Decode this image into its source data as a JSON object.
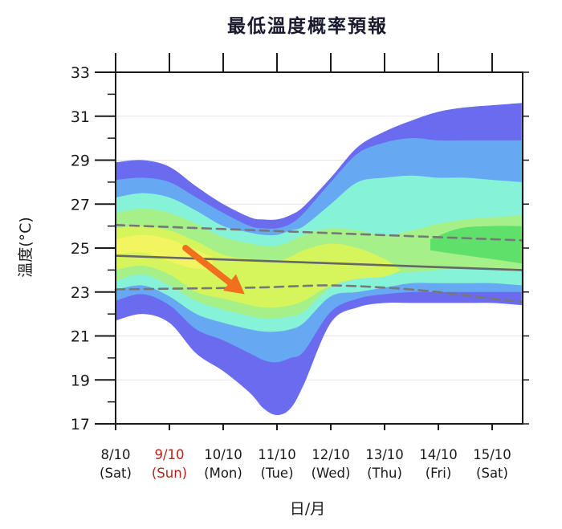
{
  "chart_data": {
    "type": "area",
    "title": "最低溫度概率預報",
    "xlabel": "日/月",
    "ylabel": "溫度(°C)",
    "ylim": [
      17,
      33
    ],
    "yticks": [
      17,
      19,
      21,
      23,
      25,
      27,
      29,
      31,
      33
    ],
    "grid": true,
    "categories": [
      {
        "date": "8/10",
        "day": "(Sat)",
        "highlight": false
      },
      {
        "date": "9/10",
        "day": "(Sun)",
        "highlight": true
      },
      {
        "date": "10/10",
        "day": "(Mon)",
        "highlight": false
      },
      {
        "date": "11/10",
        "day": "(Tue)",
        "highlight": false
      },
      {
        "date": "12/10",
        "day": "(Wed)",
        "highlight": false
      },
      {
        "date": "13/10",
        "day": "(Thu)",
        "highlight": false
      },
      {
        "date": "14/10",
        "day": "(Fri)",
        "highlight": false
      },
      {
        "date": "15/10",
        "day": "(Sat)",
        "highlight": false
      }
    ],
    "x_range": [
      0,
      7.55
    ],
    "bands": [
      {
        "color": "#6b6bef",
        "x": [
          0,
          0.5,
          1,
          1.5,
          2,
          2.5,
          2.75,
          3,
          3.25,
          3.5,
          4,
          4.5,
          5,
          5.5,
          6,
          6.5,
          7,
          7.55
        ],
        "upper": [
          28.9,
          29.0,
          28.7,
          27.8,
          27.0,
          26.4,
          26.3,
          26.3,
          26.5,
          26.9,
          28.2,
          29.6,
          30.3,
          30.8,
          31.2,
          31.4,
          31.5,
          31.6
        ],
        "lower": [
          21.7,
          22.0,
          21.6,
          20.2,
          19.4,
          18.4,
          17.7,
          17.4,
          17.7,
          18.8,
          21.6,
          22.3,
          22.5,
          22.5,
          22.5,
          22.5,
          22.5,
          22.4
        ]
      },
      {
        "color": "#67a8f2",
        "x": [
          0,
          0.5,
          1,
          1.5,
          2,
          2.5,
          2.75,
          3,
          3.25,
          3.5,
          4,
          4.5,
          5,
          5.5,
          6,
          6.5,
          7,
          7.55
        ],
        "upper": [
          28.1,
          28.2,
          28.0,
          27.3,
          26.6,
          26.0,
          25.9,
          25.9,
          26.1,
          26.6,
          28.0,
          29.3,
          29.8,
          30.0,
          29.9,
          29.9,
          29.9,
          29.9
        ],
        "lower": [
          22.6,
          22.9,
          22.4,
          21.3,
          20.8,
          20.2,
          19.9,
          19.8,
          20.0,
          20.3,
          22.1,
          22.7,
          22.9,
          23.0,
          23.0,
          23.0,
          23.0,
          23.0
        ]
      },
      {
        "color": "#86f2d8",
        "x": [
          0,
          0.5,
          1,
          1.5,
          2,
          2.5,
          2.75,
          3,
          3.25,
          3.5,
          4,
          4.5,
          5,
          5.5,
          6,
          6.5,
          7,
          7.55
        ],
        "upper": [
          27.3,
          27.5,
          27.3,
          26.7,
          26.0,
          25.7,
          25.6,
          25.6,
          25.8,
          26.0,
          27.0,
          28.0,
          28.2,
          28.3,
          28.2,
          28.2,
          28.1,
          28.0
        ],
        "lower": [
          23.1,
          23.3,
          22.8,
          22.0,
          21.6,
          21.3,
          21.2,
          21.2,
          21.3,
          21.6,
          22.8,
          23.0,
          23.2,
          23.4,
          23.4,
          23.4,
          23.4,
          23.3
        ]
      },
      {
        "color": "#a6f08a",
        "x": [
          0,
          0.5,
          1,
          1.5,
          2,
          2.5,
          2.75,
          3,
          3.25,
          3.5,
          4,
          4.5,
          5,
          5.5,
          6,
          6.5,
          7,
          7.55
        ],
        "upper": [
          26.6,
          26.8,
          26.6,
          26.1,
          25.5,
          25.2,
          25.1,
          25.1,
          25.3,
          25.6,
          25.9,
          25.8,
          25.6,
          25.8,
          26.1,
          26.3,
          26.4,
          26.5
        ],
        "lower": [
          23.5,
          23.8,
          23.3,
          22.6,
          22.2,
          21.9,
          21.8,
          21.8,
          21.9,
          22.1,
          23.2,
          23.6,
          23.8,
          23.9,
          24.0,
          24.1,
          24.1,
          24.0
        ]
      },
      {
        "color": "#d6f55c",
        "x": [
          0,
          0.5,
          1,
          1.5,
          2,
          2.5,
          2.75,
          3,
          3.25,
          3.5,
          4,
          4.5,
          5,
          5.3
        ],
        "upper": [
          25.9,
          26.0,
          25.8,
          25.3,
          24.7,
          24.5,
          24.4,
          24.4,
          24.6,
          24.9,
          25.2,
          25.0,
          24.5,
          24.0
        ],
        "lower": [
          24.0,
          24.2,
          23.8,
          23.0,
          22.7,
          22.4,
          22.3,
          22.3,
          22.4,
          22.6,
          23.3,
          23.6,
          23.7,
          24.0
        ]
      },
      {
        "color": "#f2f560",
        "x": [
          0,
          0.5,
          1,
          1.4,
          1.8
        ],
        "upper": [
          25.4,
          25.6,
          25.4,
          25.0,
          24.6
        ],
        "lower": [
          24.7,
          24.8,
          24.4,
          24.1,
          24.0
        ]
      }
    ],
    "band_patches": [
      {
        "color": "#5fe06a",
        "x": [
          5.85,
          6.4,
          7.0,
          7.55,
          7.55,
          7.0,
          6.4,
          5.85
        ],
        "y": [
          25.4,
          25.9,
          26.0,
          26.0,
          24.3,
          24.5,
          24.7,
          24.9
        ]
      }
    ],
    "lines": [
      {
        "style": "solid",
        "color": "#666666",
        "x": [
          0,
          7.55
        ],
        "y": [
          24.65,
          24.0
        ]
      },
      {
        "style": "dashed",
        "color": "#777777",
        "x": [
          0,
          7.55
        ],
        "y": [
          26.05,
          25.35
        ]
      },
      {
        "style": "dashed",
        "color": "#777777",
        "x": [
          0,
          2.5,
          3.2,
          4.0,
          5.0,
          6.0,
          7.0,
          7.55
        ],
        "y": [
          23.12,
          23.2,
          23.25,
          23.3,
          23.2,
          23.0,
          22.7,
          22.55
        ]
      }
    ],
    "arrow": {
      "color": "#f0701e",
      "from": [
        1.3,
        25.0
      ],
      "to": [
        2.4,
        22.9
      ]
    }
  }
}
